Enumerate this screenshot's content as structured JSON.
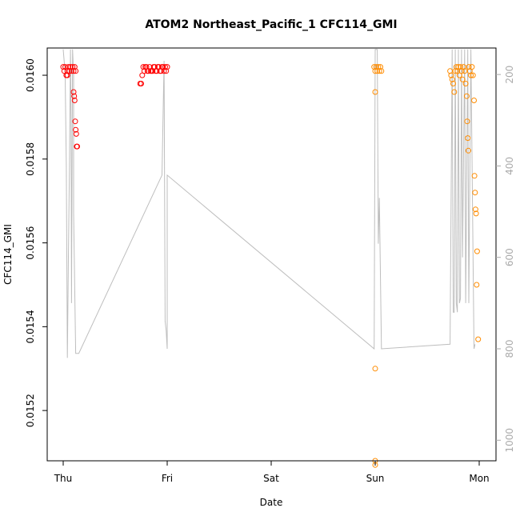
{
  "chart_data": {
    "type": "scatter",
    "title": "ATOM2 Northeast_Pacific_1 CFC114_GMI",
    "xlabel": "Date",
    "ylabel": "CFC114_GMI",
    "x_ticks": [
      "Thu",
      "Fri",
      "Sat",
      "Sun",
      "Mon"
    ],
    "xlim": [
      -0.03,
      4.17
    ],
    "ylim": [
      0.01508,
      0.016065
    ],
    "y_ticks": [
      0.0152,
      0.0154,
      0.0156,
      0.0158,
      0.016
    ],
    "y_tick_labels": [
      "0.0152",
      "0.0154",
      "0.0156",
      "0.0158",
      "0.0160"
    ],
    "y2_ticks": [
      200,
      400,
      600,
      800,
      1000
    ],
    "y2_lim": [
      1045,
      142
    ],
    "y2_reversed": true,
    "grid": false,
    "legend": "none",
    "colors": {
      "series_1": "#ff0000",
      "series_2": "#ff8c00",
      "altitude_line": "#bebebe",
      "right_axis": "#aaaaaa"
    },
    "series": [
      {
        "color": "#ff0000",
        "points": [
          [
            0.0,
            0.01602
          ],
          [
            0.01,
            0.01601
          ],
          [
            0.02,
            0.01602
          ],
          [
            0.03,
            0.016
          ],
          [
            0.04,
            0.01601
          ],
          [
            0.05,
            0.01602
          ],
          [
            0.06,
            0.01601
          ],
          [
            0.07,
            0.01602
          ],
          [
            0.08,
            0.01601
          ],
          [
            0.09,
            0.01602
          ],
          [
            0.1,
            0.01601
          ],
          [
            0.11,
            0.01602
          ],
          [
            0.12,
            0.01601
          ],
          [
            0.04,
            0.016
          ],
          [
            0.1,
            0.01596
          ],
          [
            0.105,
            0.01595
          ],
          [
            0.11,
            0.01594
          ],
          [
            0.115,
            0.01589
          ],
          [
            0.12,
            0.01587
          ],
          [
            0.125,
            0.01586
          ],
          [
            0.13,
            0.01583
          ],
          [
            0.135,
            0.01583
          ],
          [
            0.74,
            0.01598
          ],
          [
            0.75,
            0.01598
          ],
          [
            0.76,
            0.016
          ],
          [
            0.77,
            0.01602
          ],
          [
            0.78,
            0.01601
          ],
          [
            0.79,
            0.01602
          ],
          [
            0.8,
            0.01602
          ],
          [
            0.81,
            0.01601
          ],
          [
            0.82,
            0.01601
          ],
          [
            0.83,
            0.01602
          ],
          [
            0.84,
            0.01601
          ],
          [
            0.85,
            0.01601
          ],
          [
            0.86,
            0.01601
          ],
          [
            0.87,
            0.01602
          ],
          [
            0.88,
            0.01602
          ],
          [
            0.89,
            0.01601
          ],
          [
            0.9,
            0.01601
          ],
          [
            0.91,
            0.01602
          ],
          [
            0.92,
            0.01602
          ],
          [
            0.93,
            0.01601
          ],
          [
            0.94,
            0.01601
          ],
          [
            0.95,
            0.01602
          ],
          [
            0.96,
            0.01602
          ],
          [
            0.97,
            0.01601
          ],
          [
            0.98,
            0.01602
          ],
          [
            0.99,
            0.01601
          ],
          [
            1.0,
            0.01602
          ]
        ]
      },
      {
        "color": "#ff8c00",
        "points": [
          [
            2.99,
            0.01602
          ],
          [
            3.0,
            0.01601
          ],
          [
            3.01,
            0.01602
          ],
          [
            3.02,
            0.01601
          ],
          [
            3.03,
            0.01602
          ],
          [
            3.04,
            0.01601
          ],
          [
            3.05,
            0.01602
          ],
          [
            3.06,
            0.01601
          ],
          [
            3.0,
            0.01596
          ],
          [
            3.0,
            0.0153
          ],
          [
            3.0,
            0.01508
          ],
          [
            3.0,
            0.01507
          ],
          [
            3.72,
            0.01601
          ],
          [
            3.73,
            0.016
          ],
          [
            3.74,
            0.01599
          ],
          [
            3.75,
            0.01598
          ],
          [
            3.76,
            0.01596
          ],
          [
            3.77,
            0.01601
          ],
          [
            3.78,
            0.01602
          ],
          [
            3.79,
            0.01601
          ],
          [
            3.8,
            0.01602
          ],
          [
            3.81,
            0.016
          ],
          [
            3.82,
            0.01602
          ],
          [
            3.83,
            0.01601
          ],
          [
            3.84,
            0.01599
          ],
          [
            3.85,
            0.01602
          ],
          [
            3.86,
            0.01601
          ],
          [
            3.87,
            0.01598
          ],
          [
            3.88,
            0.01595
          ],
          [
            3.885,
            0.01589
          ],
          [
            3.89,
            0.01585
          ],
          [
            3.895,
            0.01582
          ],
          [
            3.9,
            0.01602
          ],
          [
            3.91,
            0.01601
          ],
          [
            3.92,
            0.016
          ],
          [
            3.93,
            0.01602
          ],
          [
            3.94,
            0.016
          ],
          [
            3.95,
            0.01594
          ],
          [
            3.955,
            0.01576
          ],
          [
            3.96,
            0.01572
          ],
          [
            3.965,
            0.01568
          ],
          [
            3.97,
            0.01567
          ],
          [
            3.975,
            0.0155
          ],
          [
            3.98,
            0.01558
          ],
          [
            3.99,
            0.01537
          ]
        ]
      }
    ],
    "altitude_trace": [
      [
        0.0,
        145
      ],
      [
        0.02,
        200
      ],
      [
        0.02,
        220
      ],
      [
        0.03,
        400
      ],
      [
        0.04,
        820
      ],
      [
        0.05,
        600
      ],
      [
        0.06,
        400
      ],
      [
        0.07,
        145
      ],
      [
        0.075,
        300
      ],
      [
        0.08,
        700
      ],
      [
        0.09,
        145
      ],
      [
        0.1,
        200
      ],
      [
        0.1,
        500
      ],
      [
        0.12,
        810
      ],
      [
        0.15,
        810
      ],
      [
        0.95,
        420
      ],
      [
        0.97,
        170
      ],
      [
        0.98,
        740
      ],
      [
        0.99,
        760
      ],
      [
        1.0,
        800
      ],
      [
        1.0,
        420
      ],
      [
        2.99,
        800
      ],
      [
        3.0,
        145
      ],
      [
        3.02,
        145
      ],
      [
        3.03,
        570
      ],
      [
        3.04,
        470
      ],
      [
        3.06,
        800
      ],
      [
        3.72,
        790
      ],
      [
        3.74,
        145
      ],
      [
        3.75,
        720
      ],
      [
        3.76,
        720
      ],
      [
        3.77,
        145
      ],
      [
        3.78,
        700
      ],
      [
        3.79,
        720
      ],
      [
        3.8,
        145
      ],
      [
        3.81,
        700
      ],
      [
        3.82,
        690
      ],
      [
        3.83,
        145
      ],
      [
        3.84,
        600
      ],
      [
        3.86,
        145
      ],
      [
        3.87,
        700
      ],
      [
        3.89,
        145
      ],
      [
        3.9,
        700
      ],
      [
        3.92,
        145
      ],
      [
        3.95,
        800
      ],
      [
        3.96,
        790
      ]
    ]
  }
}
